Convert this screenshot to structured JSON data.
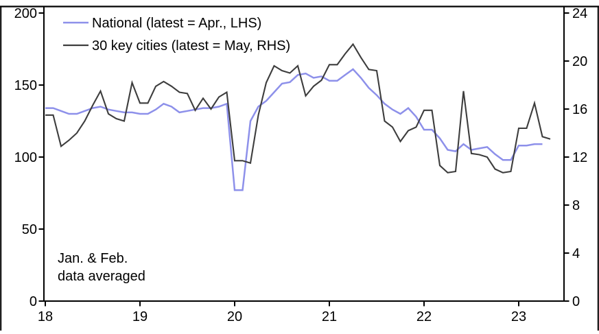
{
  "chart_data": {
    "type": "line",
    "title": "",
    "x_axis": {
      "tick_labels": [
        "18",
        "19",
        "20",
        "21",
        "22",
        "23"
      ],
      "tick_months": [
        0,
        12,
        24,
        36,
        48,
        60
      ],
      "unit": "year (monthly points, Jan 2018 - May 2023, Jan & Feb averaged)"
    },
    "left_axis": {
      "ticks": [
        0,
        50,
        100,
        150,
        200
      ],
      "range": [
        0,
        200
      ]
    },
    "right_axis": {
      "ticks": [
        0,
        4,
        8,
        12,
        16,
        20,
        24
      ],
      "range": [
        0,
        24
      ]
    },
    "grid": false,
    "legend_position": "top-left inside plot",
    "annotation": {
      "line1": "Jan. & Feb.",
      "line2": "data averaged"
    },
    "series": [
      {
        "name": "National (latest = Apr., LHS)",
        "axis": "left",
        "color": "#8d90ea",
        "start_month": "2018-01",
        "values": [
          134,
          134,
          132,
          130,
          130,
          132,
          134,
          135,
          133,
          132,
          131,
          131,
          130,
          130,
          133,
          137,
          135,
          131,
          132,
          133,
          134,
          134,
          135,
          137,
          77,
          77,
          125,
          135,
          139,
          145,
          151,
          152,
          157,
          158,
          155,
          156,
          153,
          153,
          157,
          161,
          155,
          148,
          143,
          137,
          133,
          130,
          134,
          128,
          119,
          119,
          113,
          105,
          104,
          109,
          105,
          106,
          107,
          102,
          98,
          98,
          108,
          108,
          109,
          109
        ]
      },
      {
        "name": "30 key cities (latest = May, RHS)",
        "axis": "right",
        "color": "#3d3d3d",
        "start_month": "2018-01",
        "values": [
          15.5,
          15.5,
          12.9,
          13.4,
          14.0,
          15.0,
          16.3,
          17.5,
          15.6,
          15.2,
          15.0,
          18.2,
          16.5,
          16.5,
          17.9,
          18.3,
          17.9,
          17.4,
          17.3,
          15.9,
          16.9,
          16.0,
          17.0,
          17.4,
          11.7,
          11.7,
          11.5,
          15.5,
          18.2,
          19.6,
          19.2,
          19.0,
          19.6,
          17.1,
          17.9,
          18.4,
          19.7,
          19.7,
          20.6,
          21.4,
          20.3,
          19.3,
          19.2,
          15.0,
          14.5,
          13.3,
          14.2,
          14.5,
          15.9,
          15.9,
          11.3,
          10.7,
          10.8,
          17.5,
          12.3,
          12.2,
          12.0,
          11.0,
          10.7,
          10.8,
          14.4,
          14.4,
          16.5,
          13.7,
          13.5
        ]
      }
    ]
  }
}
